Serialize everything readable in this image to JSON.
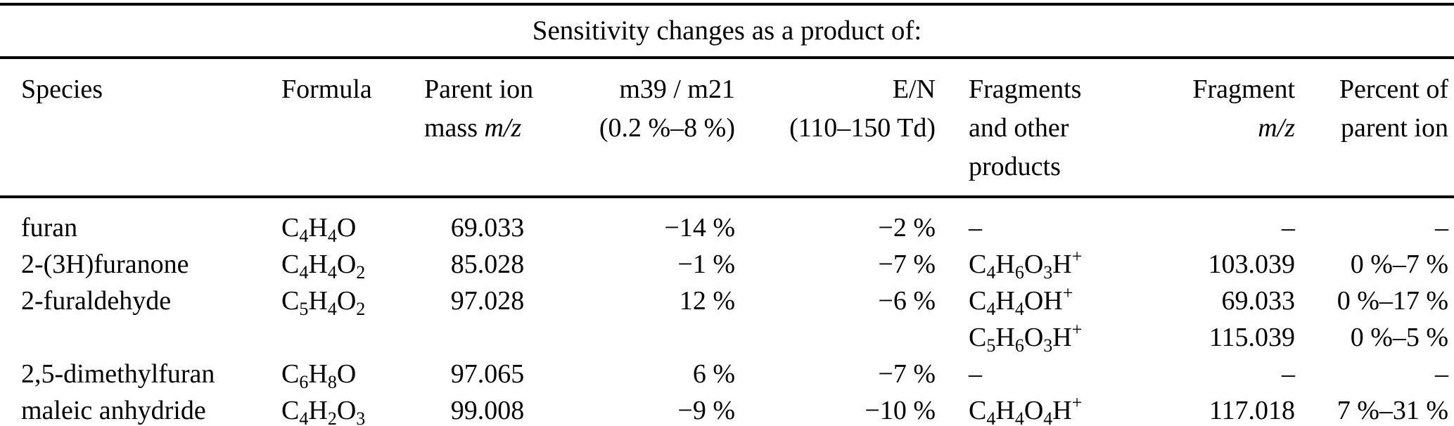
{
  "table": {
    "title": "Sensitivity changes as a product of:",
    "header": {
      "species": "Species",
      "formula": "Formula",
      "parent_ion_line1": "Parent ion",
      "parent_ion_line2_text": "mass",
      "parent_ion_line2_italic": "m/z",
      "m39_line1": "m39 / m21",
      "m39_line2": "(0.2 %–8 %)",
      "en_line1": "E/N",
      "en_line2": "(110–150 Td)",
      "fragments_line1": "Fragments",
      "fragments_line2": "and other",
      "fragments_line3": "products",
      "fragment_mz_line1": "Fragment",
      "fragment_mz_line2_italic": "m/z",
      "percent_line1": "Percent of",
      "percent_line2": "parent ion"
    },
    "rows": [
      {
        "species": "furan",
        "formula": "C_4H_4O",
        "parent_mass": "69.033",
        "m39_m21": "−14 %",
        "e_n": "−2 %",
        "fragment": "–",
        "fragment_mz": "–",
        "percent": "–"
      },
      {
        "species": "2-(3H)furanone",
        "formula": "C_4H_4O_2",
        "parent_mass": "85.028",
        "m39_m21": "−1 %",
        "e_n": "−7 %",
        "fragment": "C_4H_6O_3H^+",
        "fragment_mz": "103.039",
        "percent": "0 %–7 %"
      },
      {
        "species": "2-furaldehyde",
        "formula": "C_5H_4O_2",
        "parent_mass": "97.028",
        "m39_m21": "12 %",
        "e_n": "−6 %",
        "fragment": "C_4H_4OH^+",
        "fragment_mz": "69.033",
        "percent": "0 %–17 %"
      },
      {
        "species": "",
        "formula": "",
        "parent_mass": "",
        "m39_m21": "",
        "e_n": "",
        "fragment": "C_5H_6O_3H^+",
        "fragment_mz": "115.039",
        "percent": "0 %–5 %"
      },
      {
        "species": "2,5-dimethylfuran",
        "formula": "C_6H_8O",
        "parent_mass": "97.065",
        "m39_m21": "6 %",
        "e_n": "−7 %",
        "fragment": "–",
        "fragment_mz": "–",
        "percent": "–"
      },
      {
        "species": "maleic anhydride",
        "formula": "C_4H_2O_3",
        "parent_mass": "99.008",
        "m39_m21": "−9 %",
        "e_n": "−10 %",
        "fragment": "C_4H_4O_4H^+",
        "fragment_mz": "117.018",
        "percent": "7 %–31 %"
      }
    ]
  }
}
